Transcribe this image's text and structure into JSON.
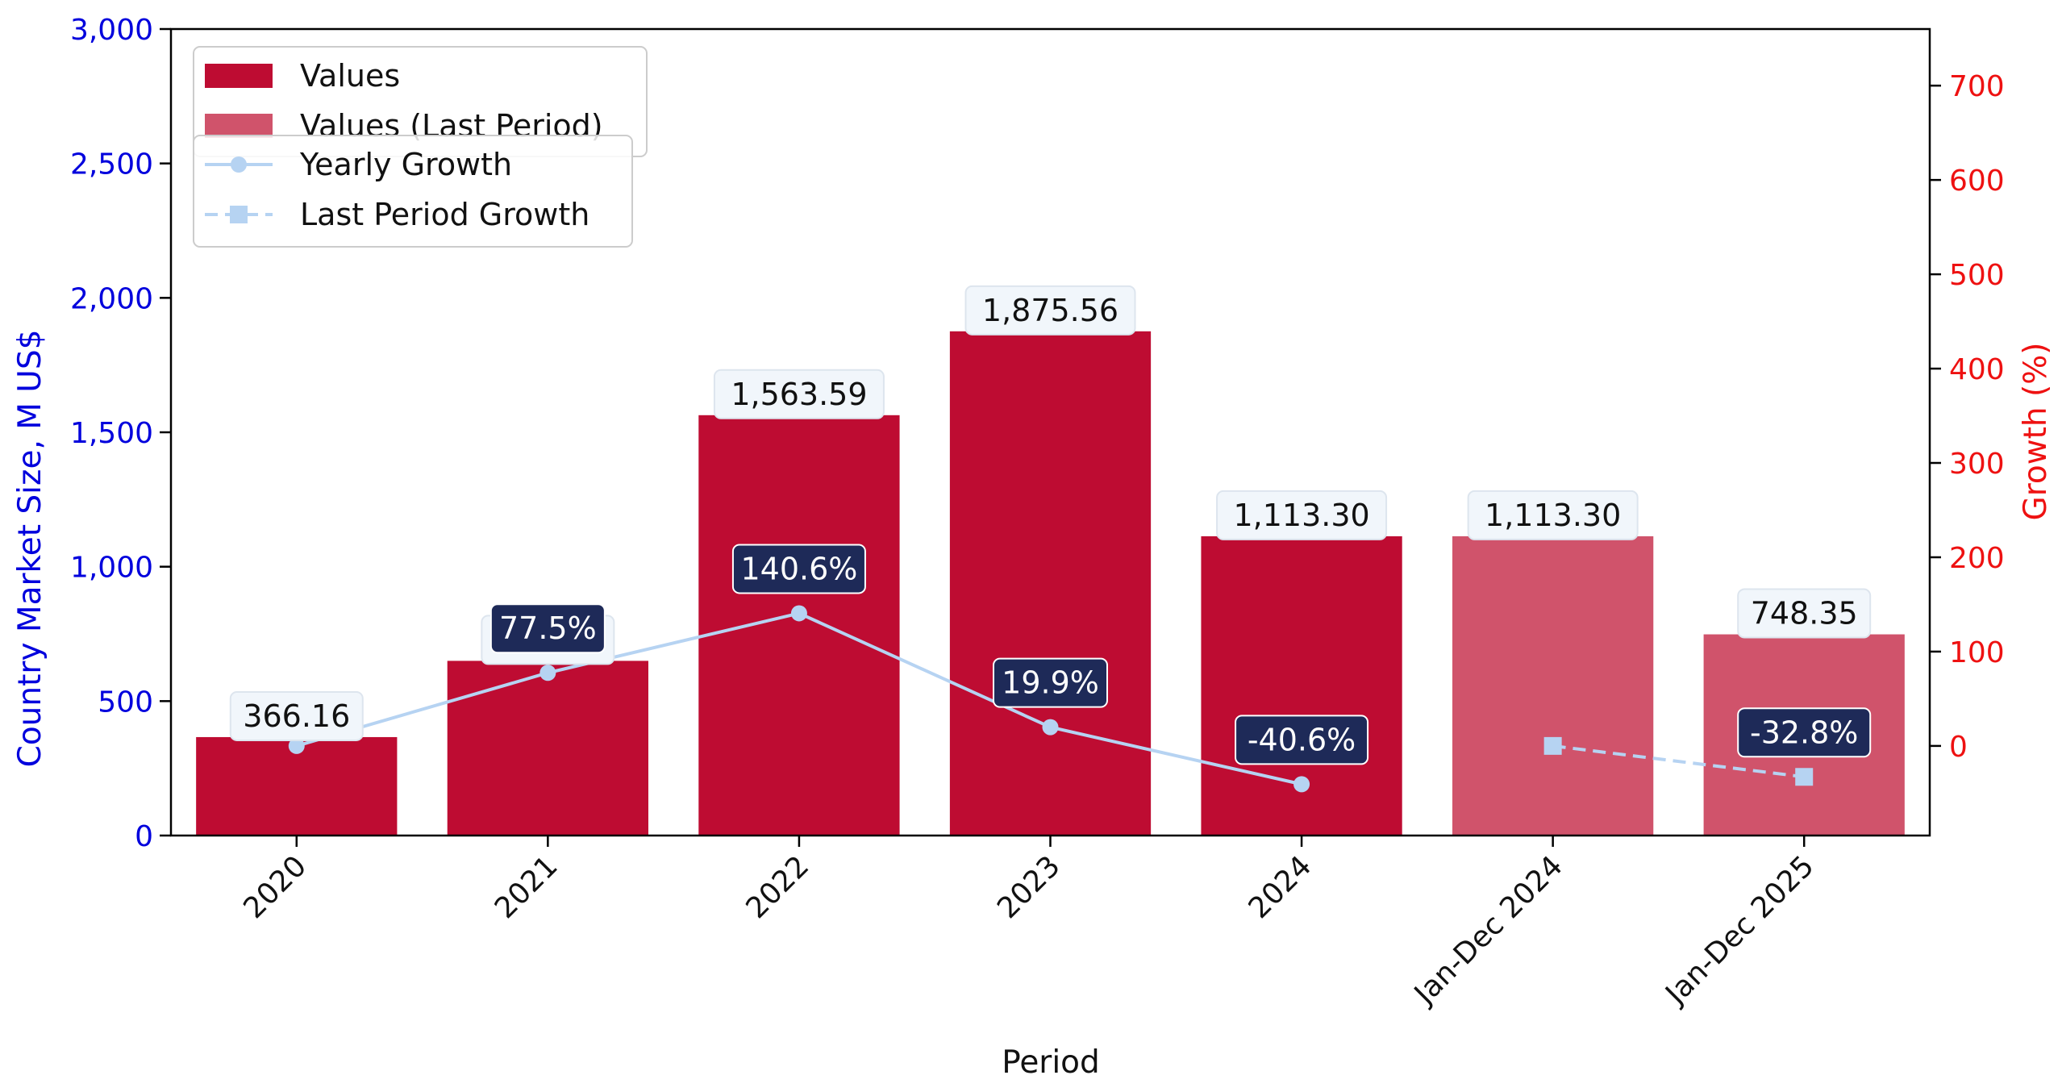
{
  "colors": {
    "bar": "#be0c32",
    "bar_last_period": "#d0536b",
    "growth_line": "#b6d3f2",
    "left_axis": "#0000dd",
    "right_axis": "#ee1111",
    "value_label_bg": "#f1f6fb",
    "growth_label_bg": "#1e2a58"
  },
  "chart_data": {
    "type": "bar",
    "xlabel": "Period",
    "ylabel": "Country Market Size, M US$",
    "y2label": "Growth (%)",
    "categories": [
      "2020",
      "2021",
      "2022",
      "2023",
      "2024",
      "Jan-Dec 2024",
      "Jan-Dec 2025"
    ],
    "ylim": [
      0,
      3000
    ],
    "y2lim": [
      -95,
      760
    ],
    "yticks": [
      0,
      500,
      1000,
      1500,
      2000,
      2500,
      3000
    ],
    "yticks_labels": [
      "0",
      "500",
      "1,000",
      "1,500",
      "2,000",
      "2,500",
      "3,000"
    ],
    "y2ticks": [
      0,
      100,
      200,
      300,
      400,
      500,
      600,
      700
    ],
    "y2ticks_labels": [
      "0",
      "100",
      "200",
      "300",
      "400",
      "500",
      "600",
      "700"
    ],
    "legend_position": "top-left",
    "series": [
      {
        "name": "Values",
        "type": "bar",
        "axis": "left",
        "values": [
          366.16,
          649.78,
          1563.59,
          1875.56,
          1113.3,
          null,
          null
        ],
        "labels": [
          "366.16",
          "649.78",
          "1,563.59",
          "1,875.56",
          "1,113.30",
          "",
          ""
        ]
      },
      {
        "name": "Values (Last Period)",
        "type": "bar",
        "axis": "left",
        "values": [
          null,
          null,
          null,
          null,
          null,
          1113.3,
          748.35
        ],
        "labels": [
          "",
          "",
          "",
          "",
          "",
          "1,113.30",
          "748.35"
        ]
      },
      {
        "name": "Yearly Growth",
        "type": "line",
        "axis": "right",
        "marker": "circle",
        "dash": "solid",
        "values": [
          0,
          77.5,
          140.6,
          19.9,
          -40.6,
          null,
          null
        ],
        "labels": [
          "",
          "77.5%",
          "140.6%",
          "19.9%",
          "-40.6%",
          "",
          ""
        ]
      },
      {
        "name": "Last Period Growth",
        "type": "line",
        "axis": "right",
        "marker": "square",
        "dash": "dashed",
        "values": [
          null,
          null,
          null,
          null,
          null,
          0,
          -32.8
        ],
        "labels": [
          "",
          "",
          "",
          "",
          "",
          "",
          "-32.8%"
        ]
      }
    ]
  }
}
